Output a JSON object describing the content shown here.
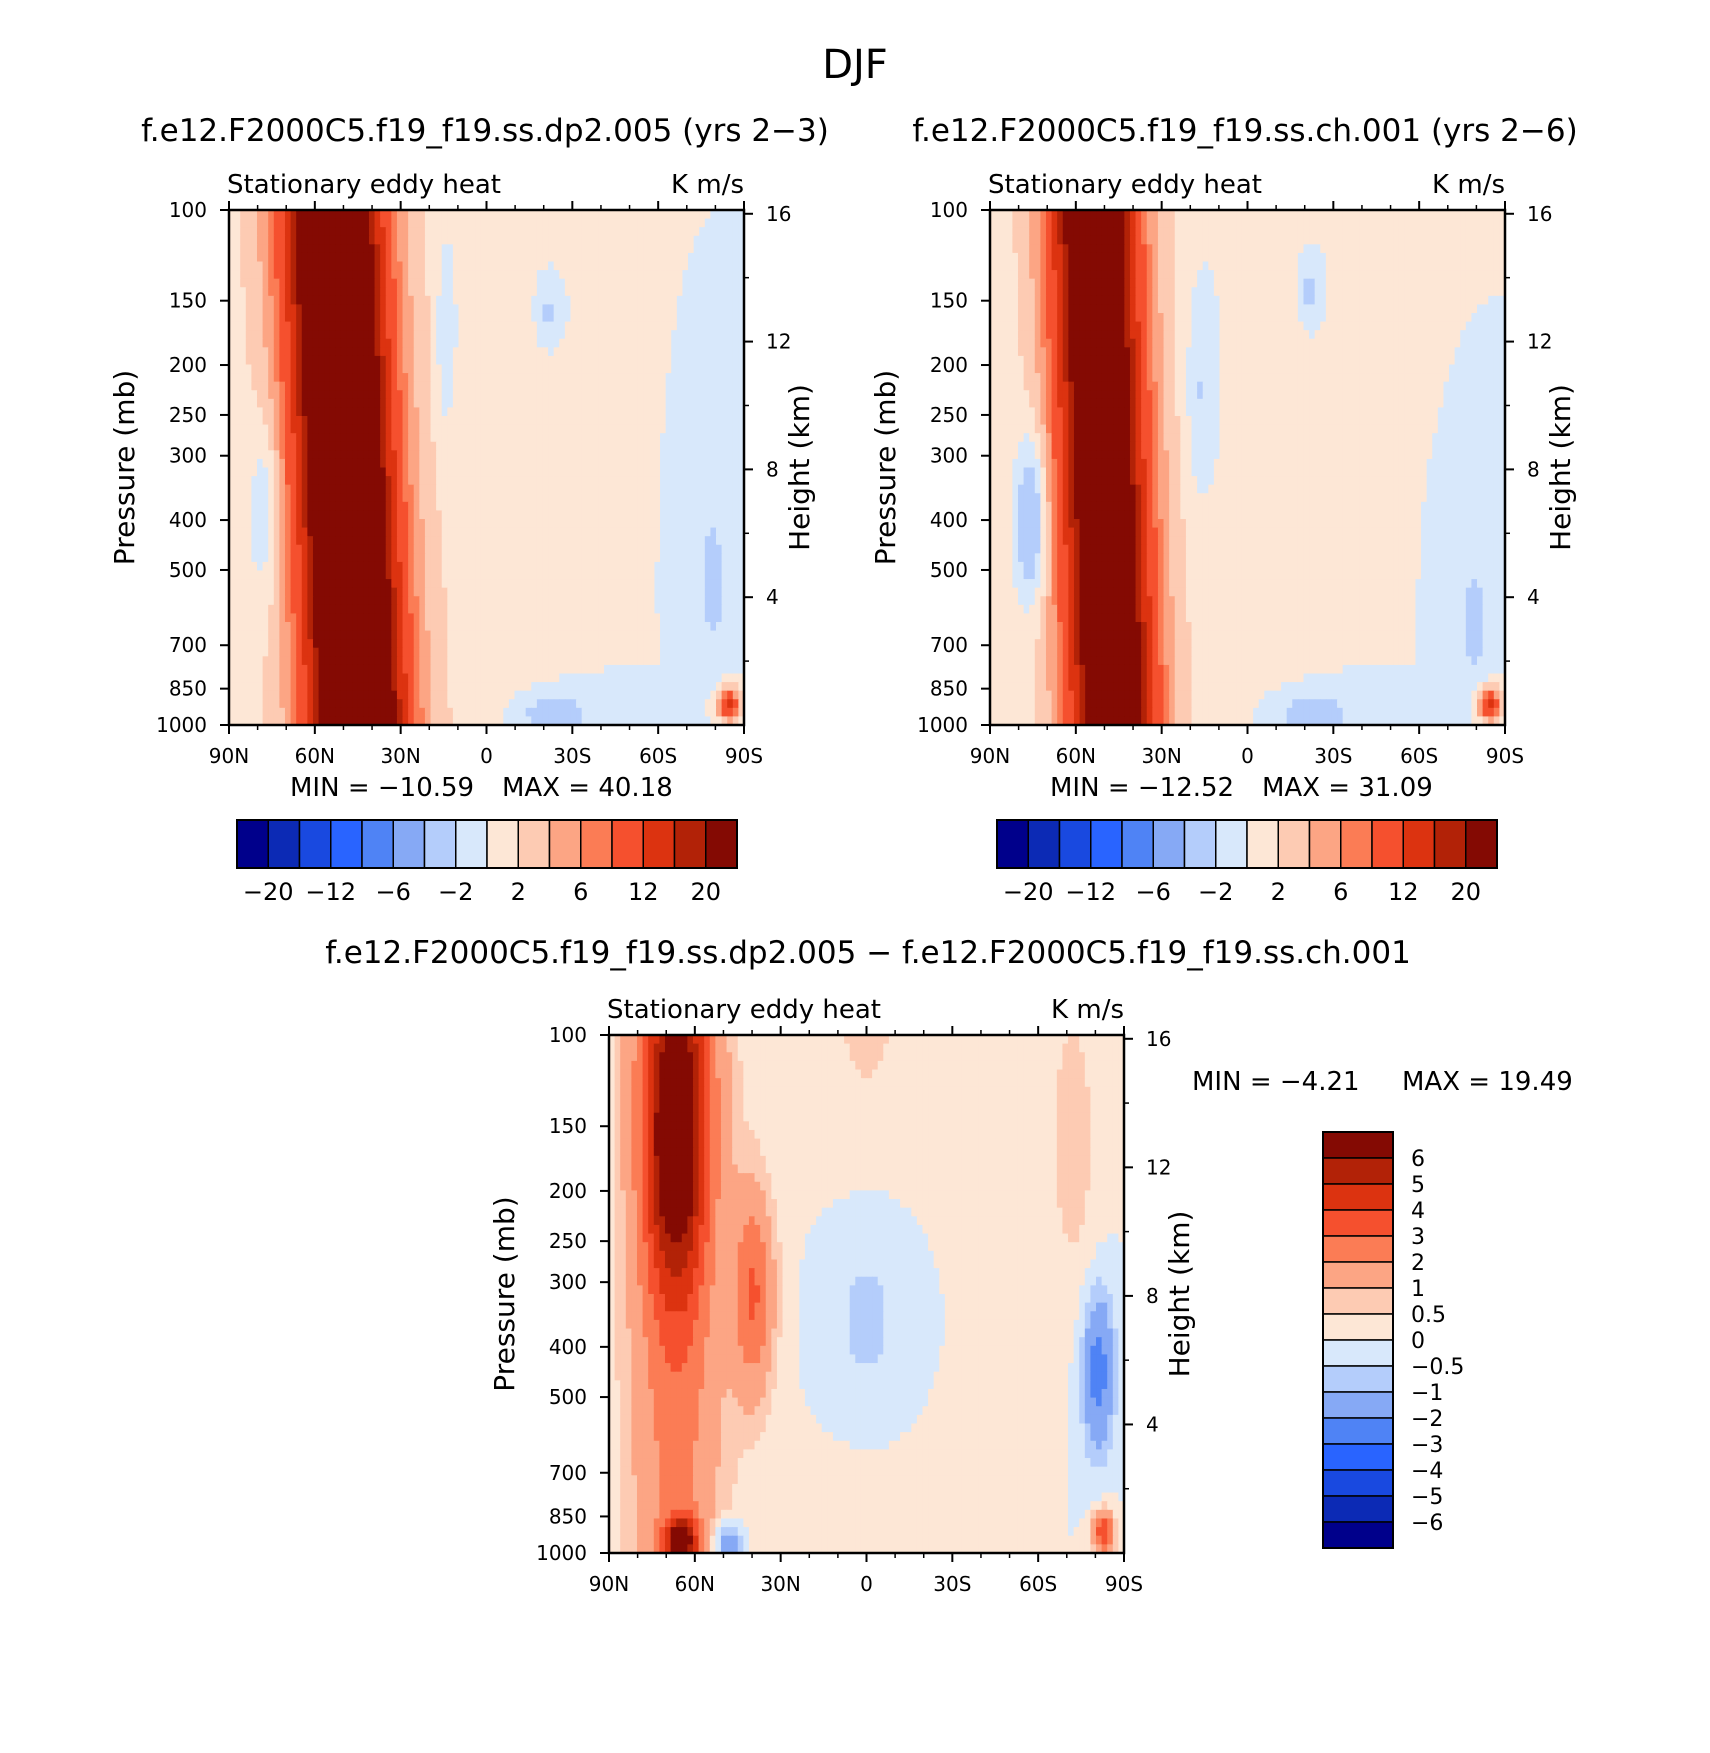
{
  "figure_title": "DJF",
  "colors": {
    "cb_main": [
      "#00008b",
      "#0c2ab5",
      "#1949e0",
      "#2964ff",
      "#4f83f5",
      "#86a9f5",
      "#b4cdfb",
      "#d8e8fb",
      "#fde7d6",
      "#fdcbb3",
      "#fca584",
      "#fb7c55",
      "#f5502e",
      "#dc3310",
      "#b22207",
      "#840a03"
    ],
    "cb_diff": [
      "#00008b",
      "#0c2ab5",
      "#1949e0",
      "#2964ff",
      "#4f83f5",
      "#86a9f5",
      "#b4cdfb",
      "#d8e8fb",
      "#fde7d6",
      "#fdcbb3",
      "#fca584",
      "#fb7c55",
      "#f5502e",
      "#dc3310",
      "#b22207",
      "#840a03"
    ]
  },
  "chart_data": [
    {
      "type": "heatmap",
      "id": "panel1",
      "title": "f.e12.F2000C5.f19_f19.ss.dp2.005 (yrs 2−3)",
      "left_title": "Stationary eddy heat",
      "units": "K m/s",
      "ylabel": "Pressure (mb)",
      "ylabel_right": "Height (km)",
      "x_ticks": [
        "90N",
        "60N",
        "30N",
        "0",
        "30S",
        "60S",
        "90S"
      ],
      "y_ticks": [
        "100",
        "150",
        "200",
        "250",
        "300",
        "400",
        "500",
        "700",
        "850",
        "1000"
      ],
      "y_ticks_right": [
        "16",
        "12",
        "8",
        "4"
      ],
      "min_label": "MIN = −10.59",
      "max_label": "MAX = 40.18",
      "min": -10.59,
      "max": 40.18,
      "colorbar_labels": [
        "−20",
        "−12",
        "−6",
        "−2",
        "2",
        "6",
        "12",
        "20"
      ]
    },
    {
      "type": "heatmap",
      "id": "panel2",
      "title": "f.e12.F2000C5.f19_f19.ss.ch.001 (yrs 2−6)",
      "left_title": "Stationary eddy heat",
      "units": "K m/s",
      "ylabel": "Pressure (mb)",
      "ylabel_right": "Height (km)",
      "x_ticks": [
        "90N",
        "60N",
        "30N",
        "0",
        "30S",
        "60S",
        "90S"
      ],
      "y_ticks": [
        "100",
        "150",
        "200",
        "250",
        "300",
        "400",
        "500",
        "700",
        "850",
        "1000"
      ],
      "y_ticks_right": [
        "16",
        "12",
        "8",
        "4"
      ],
      "min_label": "MIN = −12.52",
      "max_label": "MAX = 31.09",
      "min": -12.52,
      "max": 31.09,
      "colorbar_labels": [
        "−20",
        "−12",
        "−6",
        "−2",
        "2",
        "6",
        "12",
        "20"
      ]
    },
    {
      "type": "heatmap",
      "id": "panel3",
      "title": "f.e12.F2000C5.f19_f19.ss.dp2.005 − f.e12.F2000C5.f19_f19.ss.ch.001",
      "left_title": "Stationary eddy heat",
      "units": "K m/s",
      "ylabel": "Pressure (mb)",
      "ylabel_right": "Height (km)",
      "x_ticks": [
        "90N",
        "60N",
        "30N",
        "0",
        "30S",
        "60S",
        "90S"
      ],
      "y_ticks": [
        "100",
        "150",
        "200",
        "250",
        "300",
        "400",
        "500",
        "700",
        "850",
        "1000"
      ],
      "y_ticks_right": [
        "16",
        "12",
        "8",
        "4"
      ],
      "min_label": "MIN = −4.21",
      "max_label": "MAX = 19.49",
      "min": -4.21,
      "max": 19.49,
      "colorbar_labels": [
        "6",
        "5",
        "4",
        "3",
        "2",
        "1",
        "0.5",
        "0",
        "−0.5",
        "−1",
        "−2",
        "−3",
        "−4",
        "−5",
        "−6"
      ]
    }
  ]
}
